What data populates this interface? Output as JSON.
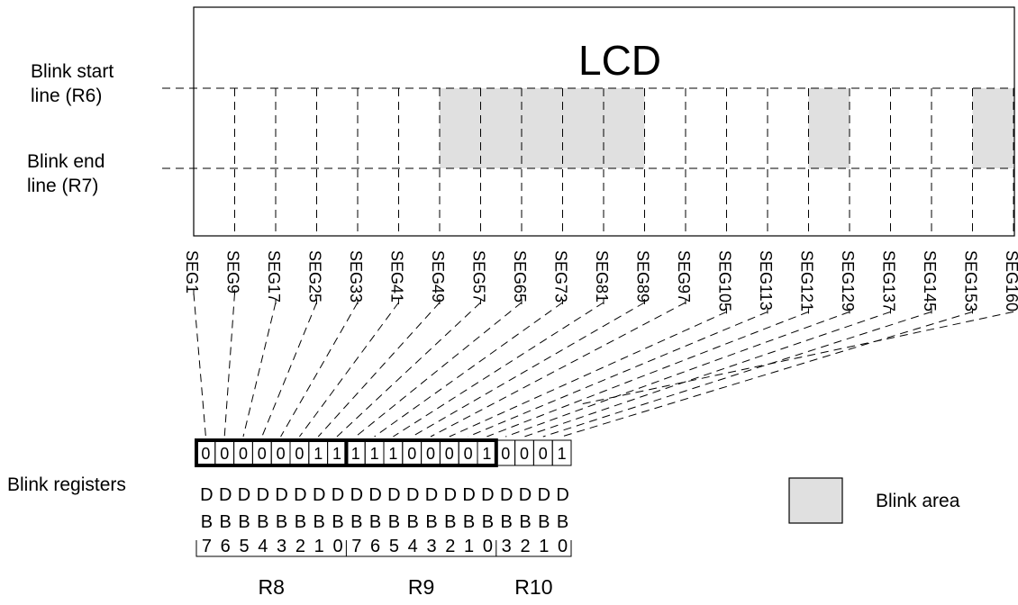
{
  "lcd": {
    "title": "LCD",
    "blink_start_label": [
      "Blink start",
      "line (R6)"
    ],
    "blink_end_label": [
      "Blink end",
      "line (R7)"
    ]
  },
  "segments": [
    "SEG1",
    "SEG9",
    "SEG17",
    "SEG25",
    "SEG33",
    "SEG41",
    "SEG49",
    "SEG57",
    "SEG65",
    "SEG73",
    "SEG81",
    "SEG89",
    "SEG97",
    "SEG105",
    "SEG113",
    "SEG121",
    "SEG129",
    "SEG137",
    "SEG145",
    "SEG153",
    "SEG160"
  ],
  "blink_cells": [
    6,
    7,
    8,
    9,
    10,
    15,
    19
  ],
  "blink_registers": {
    "label": "Blink registers",
    "groups": [
      {
        "name": "R8",
        "bits": [
          "0",
          "0",
          "0",
          "0",
          "0",
          "0",
          "1",
          "1"
        ],
        "db_labels": [
          "7",
          "6",
          "5",
          "4",
          "3",
          "2",
          "1",
          "0"
        ]
      },
      {
        "name": "R9",
        "bits": [
          "1",
          "1",
          "1",
          "0",
          "0",
          "0",
          "0",
          "1"
        ],
        "db_labels": [
          "7",
          "6",
          "5",
          "4",
          "3",
          "2",
          "1",
          "0"
        ]
      },
      {
        "name": "R10",
        "bits": [
          "0",
          "0",
          "0",
          "1"
        ],
        "db_labels": [
          "3",
          "2",
          "1",
          "0"
        ]
      }
    ],
    "db_row1": "D",
    "db_row2": "B"
  },
  "legend": {
    "label": "Blink area",
    "color": "#e0e0e0"
  }
}
